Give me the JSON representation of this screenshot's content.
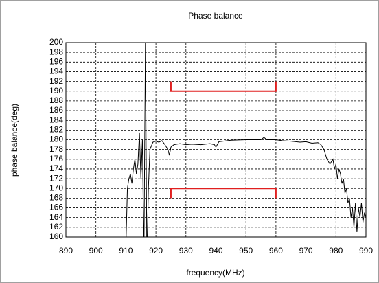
{
  "chart_data": {
    "type": "line",
    "title": "Phase balance",
    "x_label": "frequency(MHz)",
    "y_label": "phase balance(deg)",
    "xlim": [
      890,
      990
    ],
    "xticks": [
      890,
      900,
      910,
      920,
      930,
      940,
      950,
      960,
      970,
      980,
      990
    ],
    "ylim": [
      160,
      200
    ],
    "yticks": [
      160,
      162,
      164,
      166,
      168,
      170,
      172,
      174,
      176,
      178,
      180,
      182,
      184,
      186,
      188,
      190,
      192,
      194,
      196,
      198,
      200
    ],
    "grid": true,
    "series": [
      {
        "color": "#000000",
        "x": [
          910,
          910.5,
          911,
          911.5,
          912,
          912.5,
          913,
          913.5,
          914,
          914.5,
          915,
          915.5,
          916,
          916.5,
          917,
          917.5,
          918,
          919,
          920,
          921,
          922,
          923,
          924,
          924.5,
          925,
          926,
          928,
          930,
          932,
          935,
          938,
          939.5,
          940,
          941,
          945,
          950,
          955,
          956,
          957,
          960,
          962,
          965,
          968,
          970,
          972,
          974,
          975,
          976,
          977,
          978,
          979,
          979.5,
          980,
          980.5,
          981,
          981.5,
          982,
          982.5,
          983,
          983.5,
          984,
          984.5,
          985,
          985.5,
          986,
          986.5,
          987,
          987.5,
          988,
          988.5,
          989,
          989.5,
          990
        ],
        "values": [
          158,
          170,
          172,
          173,
          171,
          174,
          176,
          173,
          175,
          181.5,
          172,
          180,
          155,
          200,
          155,
          170,
          178,
          179.5,
          179.7,
          179.5,
          179.8,
          179,
          178,
          176.8,
          178.5,
          179,
          179.2,
          179,
          179.1,
          179,
          179.2,
          179,
          178.5,
          179.6,
          179.9,
          180,
          180,
          180.5,
          180,
          180,
          179.8,
          179.7,
          179.5,
          179.6,
          179.3,
          179.4,
          179,
          178,
          176,
          175,
          176,
          174,
          175,
          172,
          174,
          173,
          171,
          172,
          169,
          170,
          167,
          168,
          164,
          166,
          162,
          167,
          161,
          166,
          164,
          167,
          163,
          165,
          164
        ]
      },
      {
        "color": "#e02020",
        "x": [
          925,
          925,
          960,
          960
        ],
        "values": [
          192,
          190,
          190,
          192
        ]
      },
      {
        "color": "#e02020",
        "x": [
          925,
          925,
          960,
          960
        ],
        "values": [
          168,
          170,
          170,
          168
        ]
      }
    ]
  }
}
